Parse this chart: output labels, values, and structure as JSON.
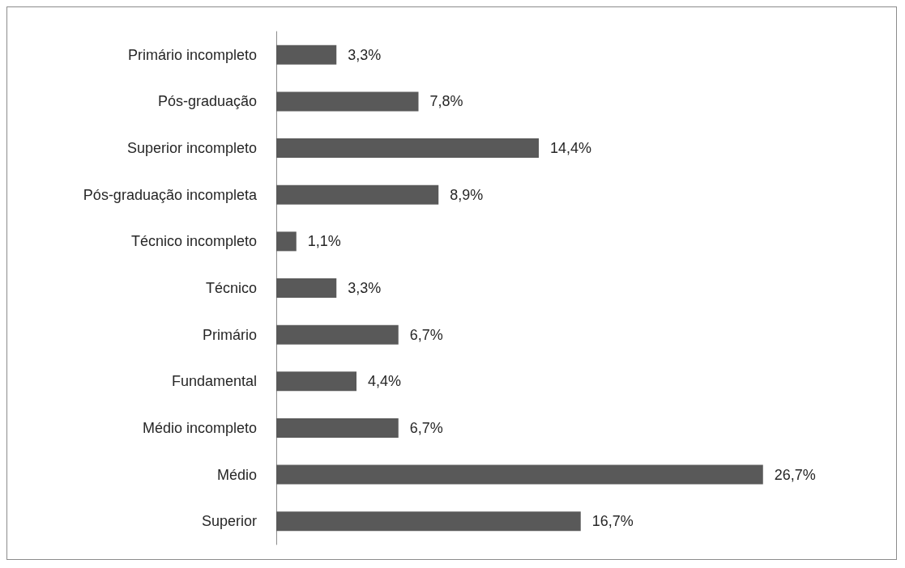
{
  "chart_data": {
    "type": "bar",
    "orientation": "horizontal",
    "categories": [
      "Primário incompleto",
      "Pós-graduação",
      "Superior incompleto",
      "Pós-graduação incompleta",
      "Técnico incompleto",
      "Técnico",
      "Primário",
      "Fundamental",
      "Médio incompleto",
      "Médio",
      "Superior"
    ],
    "values": [
      3.3,
      7.8,
      14.4,
      8.9,
      1.1,
      3.3,
      6.7,
      4.4,
      6.7,
      26.7,
      16.7
    ],
    "value_labels": [
      "3,3%",
      "7,8%",
      "14,4%",
      "8,9%",
      "1,1%",
      "3,3%",
      "6,7%",
      "4,4%",
      "6,7%",
      "26,7%",
      "16,7%"
    ],
    "color": "#595959"
  }
}
